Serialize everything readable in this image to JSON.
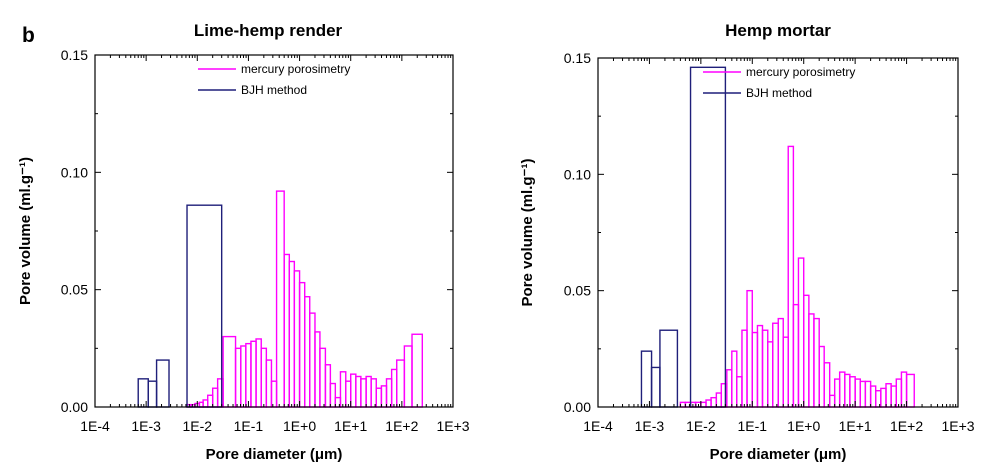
{
  "figure": {
    "panel_letter": "b"
  },
  "chart_data": [
    {
      "type": "bar",
      "title": "Lime-hemp render",
      "xlabel": "Pore diameter (μm)",
      "ylabel": "Pore volume (ml.g⁻¹)",
      "x_scale": "log",
      "xlim": [
        0.0001,
        1000
      ],
      "ylim": [
        0,
        0.15
      ],
      "x_tick_labels": [
        "1E-4",
        "1E-3",
        "1E-2",
        "1E-1",
        "1E+0",
        "1E+1",
        "1E+2",
        "1E+3"
      ],
      "y_tick_labels": [
        "0.00",
        "0.05",
        "0.10",
        "0.15"
      ],
      "y_ticks": [
        0,
        0.05,
        0.1,
        0.15
      ],
      "legend_position": "top-right",
      "series": [
        {
          "name": "mercury porosimetry",
          "color": "#ff00ff",
          "bins": [
            [
              0.0063,
              0.0075,
              0.001
            ],
            [
              0.0075,
              0.009,
              0.001
            ],
            [
              0.009,
              0.011,
              0.0015
            ],
            [
              0.011,
              0.013,
              0.002
            ],
            [
              0.013,
              0.016,
              0.003
            ],
            [
              0.016,
              0.02,
              0.005
            ],
            [
              0.02,
              0.025,
              0.008
            ],
            [
              0.025,
              0.032,
              0.012
            ],
            [
              0.032,
              0.056,
              0.03
            ],
            [
              0.056,
              0.071,
              0.025
            ],
            [
              0.071,
              0.089,
              0.026
            ],
            [
              0.089,
              0.112,
              0.027
            ],
            [
              0.112,
              0.141,
              0.028
            ],
            [
              0.141,
              0.178,
              0.029
            ],
            [
              0.178,
              0.224,
              0.025
            ],
            [
              0.224,
              0.282,
              0.02
            ],
            [
              0.282,
              0.355,
              0.011
            ],
            [
              0.355,
              0.5,
              0.092
            ],
            [
              0.5,
              0.63,
              0.065
            ],
            [
              0.63,
              0.79,
              0.062
            ],
            [
              0.79,
              1.0,
              0.058
            ],
            [
              1.0,
              1.26,
              0.053
            ],
            [
              1.26,
              1.58,
              0.047
            ],
            [
              1.58,
              2.0,
              0.04
            ],
            [
              2.0,
              2.5,
              0.032
            ],
            [
              2.5,
              3.2,
              0.025
            ],
            [
              3.2,
              4.0,
              0.018
            ],
            [
              4.0,
              5.0,
              0.01
            ],
            [
              5.0,
              6.3,
              0.004
            ],
            [
              6.3,
              8.0,
              0.015
            ],
            [
              8.0,
              10.0,
              0.011
            ],
            [
              10.0,
              12.6,
              0.014
            ],
            [
              12.6,
              15.8,
              0.013
            ],
            [
              15.8,
              20.0,
              0.012
            ],
            [
              20.0,
              25.1,
              0.013
            ],
            [
              25.1,
              31.6,
              0.012
            ],
            [
              31.6,
              39.8,
              0.008
            ],
            [
              39.8,
              50.1,
              0.009
            ],
            [
              50.1,
              63.1,
              0.012
            ],
            [
              63.1,
              79.4,
              0.016
            ],
            [
              79.4,
              112.0,
              0.02
            ],
            [
              112.0,
              158.0,
              0.026
            ],
            [
              158.0,
              251.0,
              0.031
            ]
          ]
        },
        {
          "name": "BJH method",
          "color": "#1f1f7a",
          "bins": [
            [
              0.0007,
              0.0011,
              0.012
            ],
            [
              0.0011,
              0.0016,
              0.011
            ],
            [
              0.0016,
              0.0028,
              0.02
            ],
            [
              0.0028,
              0.0063,
              0.0
            ],
            [
              0.0063,
              0.03,
              0.086
            ]
          ]
        }
      ]
    },
    {
      "type": "bar",
      "title": "Hemp mortar",
      "xlabel": "Pore diameter (μm)",
      "ylabel": "Pore volume (ml.g⁻¹)",
      "x_scale": "log",
      "xlim": [
        0.0001,
        1000
      ],
      "ylim": [
        0,
        0.15
      ],
      "x_tick_labels": [
        "1E-4",
        "1E-3",
        "1E-2",
        "1E-1",
        "1E+0",
        "1E+1",
        "1E+2",
        "1E+3"
      ],
      "y_tick_labels": [
        "0.00",
        "0.05",
        "0.10",
        "0.15"
      ],
      "y_ticks": [
        0,
        0.05,
        0.1,
        0.15
      ],
      "legend_position": "top-right",
      "series": [
        {
          "name": "mercury porosimetry",
          "color": "#ff00ff",
          "bins": [
            [
              0.004,
              0.005,
              0.002
            ],
            [
              0.005,
              0.0063,
              0.002
            ],
            [
              0.0063,
              0.0079,
              0.002
            ],
            [
              0.0079,
              0.01,
              0.002
            ],
            [
              0.01,
              0.0126,
              0.002
            ],
            [
              0.0126,
              0.0158,
              0.003
            ],
            [
              0.0158,
              0.02,
              0.004
            ],
            [
              0.02,
              0.025,
              0.006
            ],
            [
              0.025,
              0.032,
              0.01
            ],
            [
              0.032,
              0.04,
              0.016
            ],
            [
              0.04,
              0.05,
              0.024
            ],
            [
              0.05,
              0.063,
              0.013
            ],
            [
              0.063,
              0.079,
              0.033
            ],
            [
              0.079,
              0.1,
              0.05
            ],
            [
              0.1,
              0.126,
              0.032
            ],
            [
              0.126,
              0.158,
              0.035
            ],
            [
              0.158,
              0.2,
              0.033
            ],
            [
              0.2,
              0.25,
              0.028
            ],
            [
              0.25,
              0.32,
              0.036
            ],
            [
              0.32,
              0.4,
              0.038
            ],
            [
              0.4,
              0.5,
              0.03
            ],
            [
              0.5,
              0.63,
              0.112
            ],
            [
              0.63,
              0.79,
              0.044
            ],
            [
              0.79,
              1.0,
              0.064
            ],
            [
              1.0,
              1.26,
              0.048
            ],
            [
              1.26,
              1.58,
              0.04
            ],
            [
              1.58,
              2.0,
              0.038
            ],
            [
              2.0,
              2.5,
              0.026
            ],
            [
              2.5,
              3.2,
              0.019
            ],
            [
              3.2,
              4.0,
              0.005
            ],
            [
              4.0,
              5.0,
              0.012
            ],
            [
              5.0,
              6.3,
              0.015
            ],
            [
              6.3,
              7.9,
              0.014
            ],
            [
              7.9,
              10.0,
              0.013
            ],
            [
              10.0,
              12.6,
              0.012
            ],
            [
              12.6,
              15.8,
              0.011
            ],
            [
              15.8,
              20.0,
              0.011
            ],
            [
              20.0,
              25.1,
              0.009
            ],
            [
              25.1,
              31.6,
              0.007
            ],
            [
              31.6,
              39.8,
              0.008
            ],
            [
              39.8,
              50.1,
              0.01
            ],
            [
              50.1,
              63.1,
              0.009
            ],
            [
              63.1,
              79.4,
              0.012
            ],
            [
              79.4,
              100.0,
              0.015
            ],
            [
              100.0,
              141.0,
              0.014
            ]
          ]
        },
        {
          "name": "BJH method",
          "color": "#1f1f7a",
          "bins": [
            [
              0.0007,
              0.0011,
              0.024
            ],
            [
              0.0011,
              0.0016,
              0.017
            ],
            [
              0.0016,
              0.0035,
              0.033
            ],
            [
              0.0035,
              0.0063,
              0.0
            ],
            [
              0.0063,
              0.03,
              0.146
            ]
          ]
        }
      ]
    }
  ]
}
